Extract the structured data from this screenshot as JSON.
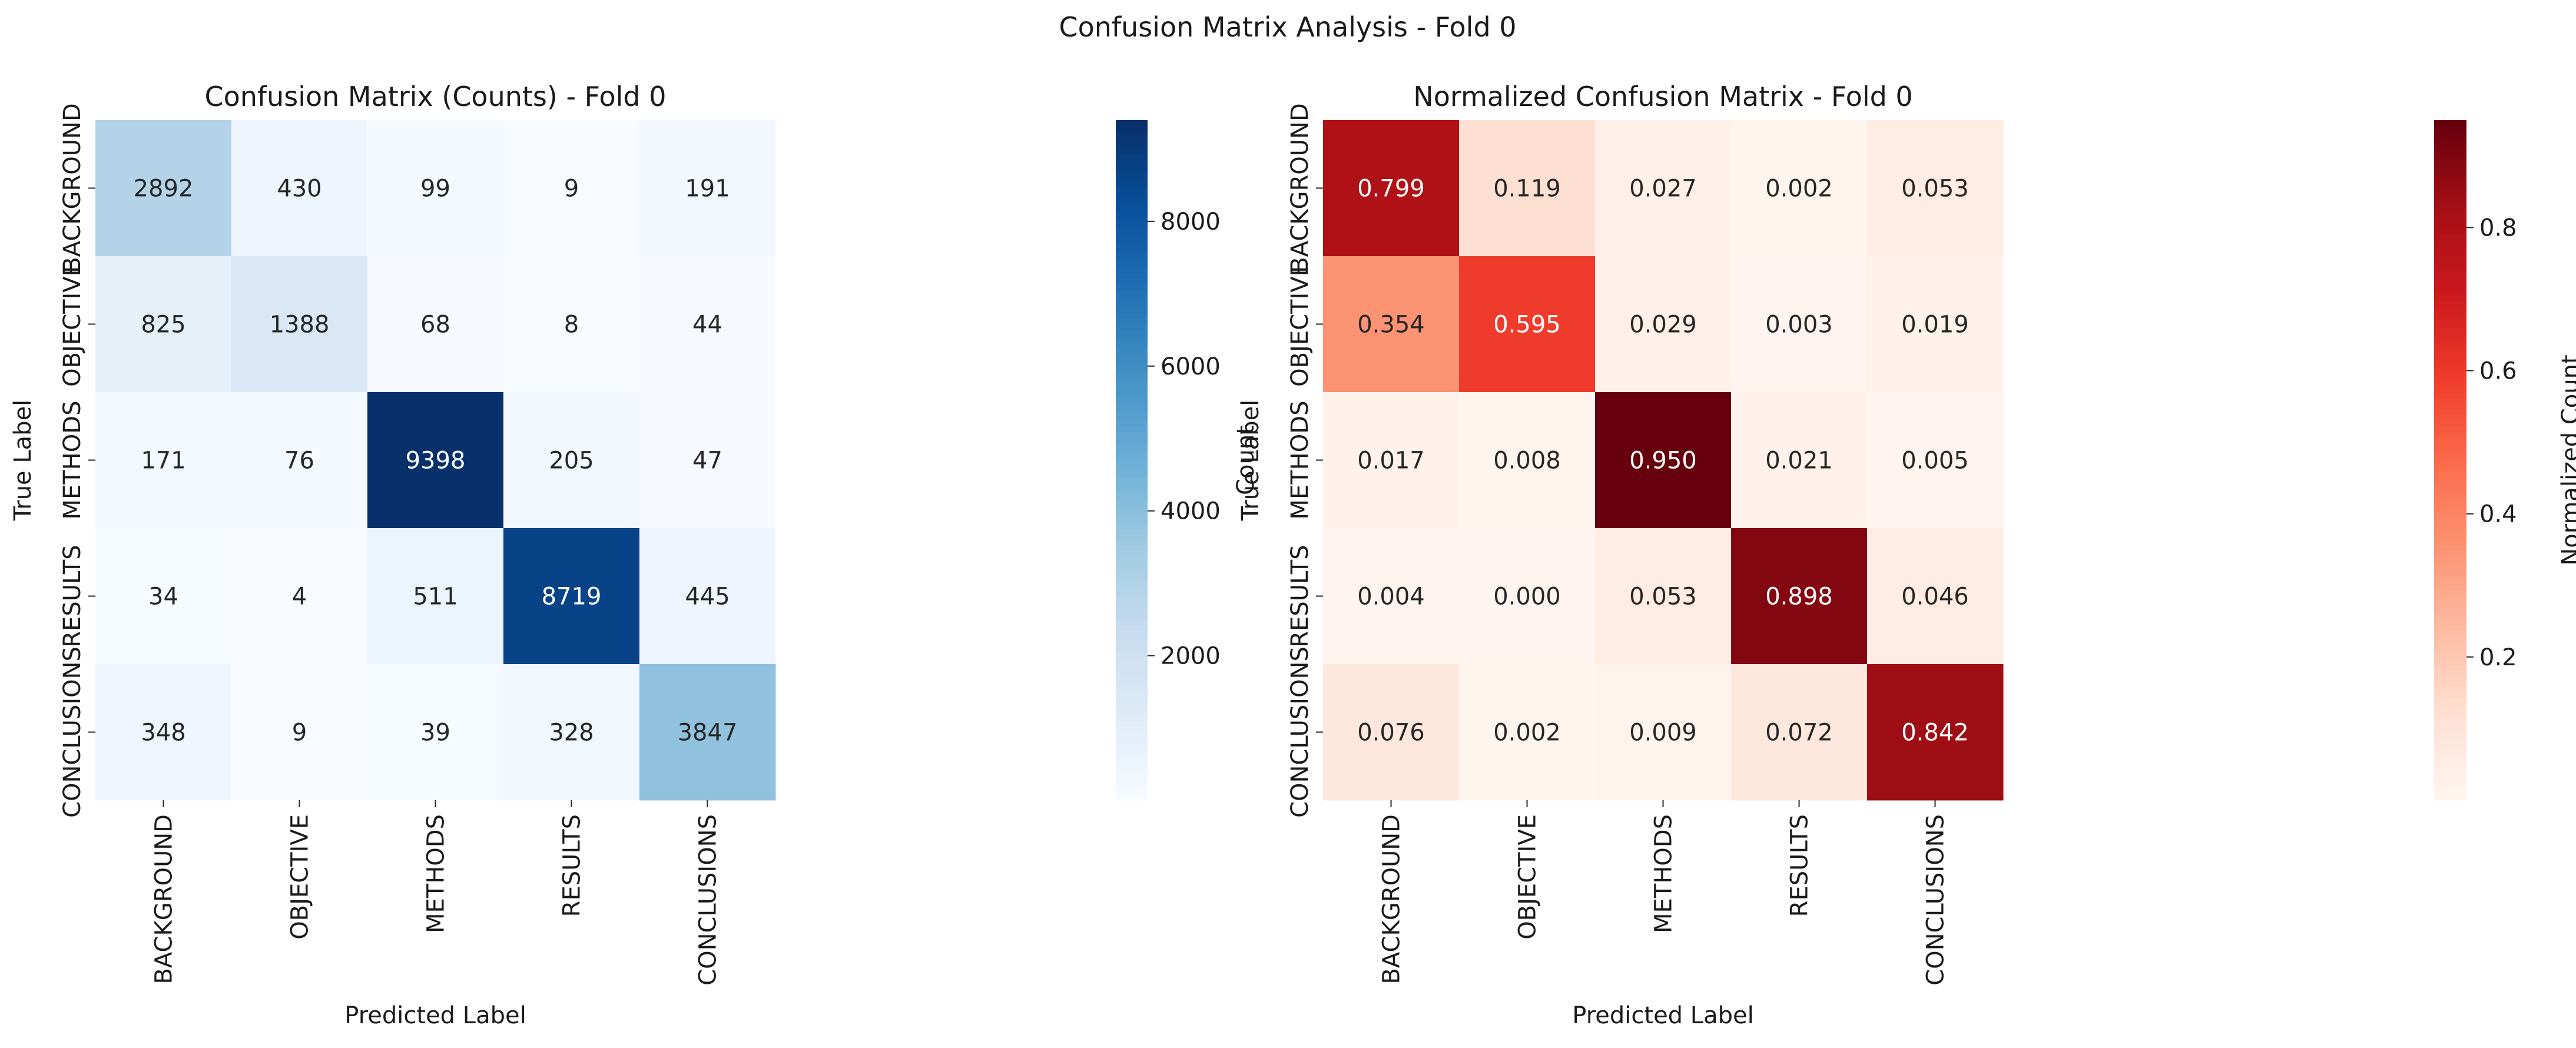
{
  "figure_title": "Confusion Matrix Analysis - Fold 0",
  "chart_data": [
    {
      "type": "heatmap",
      "title": "Confusion Matrix (Counts) - Fold 0",
      "xlabel": "Predicted Label",
      "ylabel": "True Label",
      "x_categories": [
        "BACKGROUND",
        "OBJECTIVE",
        "METHODS",
        "RESULTS",
        "CONCLUSIONS"
      ],
      "y_categories": [
        "BACKGROUND",
        "OBJECTIVE",
        "METHODS",
        "RESULTS",
        "CONCLUSIONS"
      ],
      "values": [
        [
          2892,
          430,
          99,
          9,
          191
        ],
        [
          825,
          1388,
          68,
          8,
          44
        ],
        [
          171,
          76,
          9398,
          205,
          47
        ],
        [
          34,
          4,
          511,
          8719,
          445
        ],
        [
          348,
          9,
          39,
          328,
          3847
        ]
      ],
      "value_labels": [
        [
          "2892",
          "430",
          "99",
          "9",
          "191"
        ],
        [
          "825",
          "1388",
          "68",
          "8",
          "44"
        ],
        [
          "171",
          "76",
          "9398",
          "205",
          "47"
        ],
        [
          "34",
          "4",
          "511",
          "8719",
          "445"
        ],
        [
          "348",
          "9",
          "39",
          "328",
          "3847"
        ]
      ],
      "colormap": "Blues",
      "colorbar": {
        "label": "Count",
        "range": [
          4,
          9398
        ],
        "ticks": [
          2000,
          4000,
          6000,
          8000
        ],
        "tick_labels": [
          "2000",
          "4000",
          "6000",
          "8000"
        ]
      }
    },
    {
      "type": "heatmap",
      "title": "Normalized Confusion Matrix - Fold 0",
      "xlabel": "Predicted Label",
      "ylabel": "True Label",
      "x_categories": [
        "BACKGROUND",
        "OBJECTIVE",
        "METHODS",
        "RESULTS",
        "CONCLUSIONS"
      ],
      "y_categories": [
        "BACKGROUND",
        "OBJECTIVE",
        "METHODS",
        "RESULTS",
        "CONCLUSIONS"
      ],
      "values": [
        [
          0.799,
          0.119,
          0.027,
          0.002,
          0.053
        ],
        [
          0.354,
          0.595,
          0.029,
          0.003,
          0.019
        ],
        [
          0.017,
          0.008,
          0.95,
          0.021,
          0.005
        ],
        [
          0.004,
          0.0,
          0.053,
          0.898,
          0.046
        ],
        [
          0.076,
          0.002,
          0.009,
          0.072,
          0.842
        ]
      ],
      "value_labels": [
        [
          "0.799",
          "0.119",
          "0.027",
          "0.002",
          "0.053"
        ],
        [
          "0.354",
          "0.595",
          "0.029",
          "0.003",
          "0.019"
        ],
        [
          "0.017",
          "0.008",
          "0.950",
          "0.021",
          "0.005"
        ],
        [
          "0.004",
          "0.000",
          "0.053",
          "0.898",
          "0.046"
        ],
        [
          "0.076",
          "0.002",
          "0.009",
          "0.072",
          "0.842"
        ]
      ],
      "colormap": "Reds",
      "colorbar": {
        "label": "Normalized Count",
        "range": [
          0.0,
          0.95
        ],
        "ticks": [
          0.2,
          0.4,
          0.6,
          0.8
        ],
        "tick_labels": [
          "0.2",
          "0.4",
          "0.6",
          "0.8"
        ]
      }
    }
  ]
}
